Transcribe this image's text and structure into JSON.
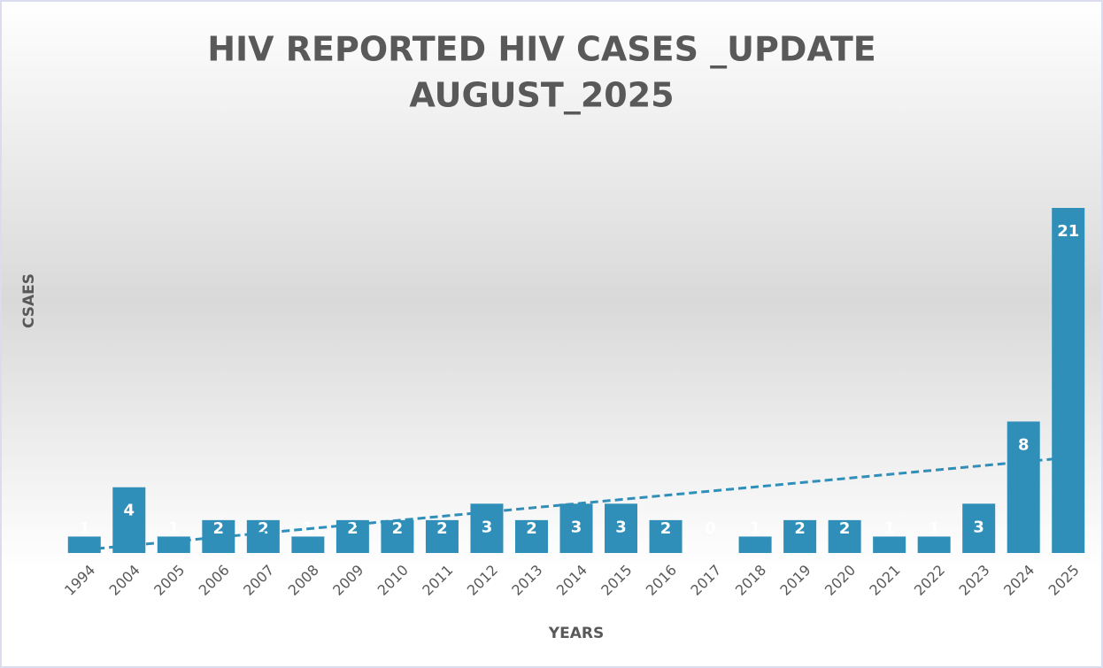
{
  "chart_data": {
    "type": "bar",
    "title": "HIV REPORTED HIV CASES _UPDATE",
    "subtitle": "AUGUST_2025",
    "x_label": "YEARS",
    "y_label": "CSAES",
    "categories": [
      "1994",
      "2004",
      "2005",
      "2006",
      "2007",
      "2008",
      "2009",
      "2010",
      "2011",
      "2012",
      "2013",
      "2014",
      "2015",
      "2016",
      "2017",
      "2018",
      "2019",
      "2020",
      "2021",
      "2022",
      "2023",
      "2024",
      "2025"
    ],
    "values": [
      1,
      4,
      1,
      2,
      2,
      1,
      2,
      2,
      2,
      3,
      2,
      3,
      3,
      2,
      0,
      1,
      2,
      2,
      1,
      1,
      3,
      8,
      21
    ],
    "color": "#2f8fb8",
    "trendline": "linear",
    "data_labels": true
  }
}
